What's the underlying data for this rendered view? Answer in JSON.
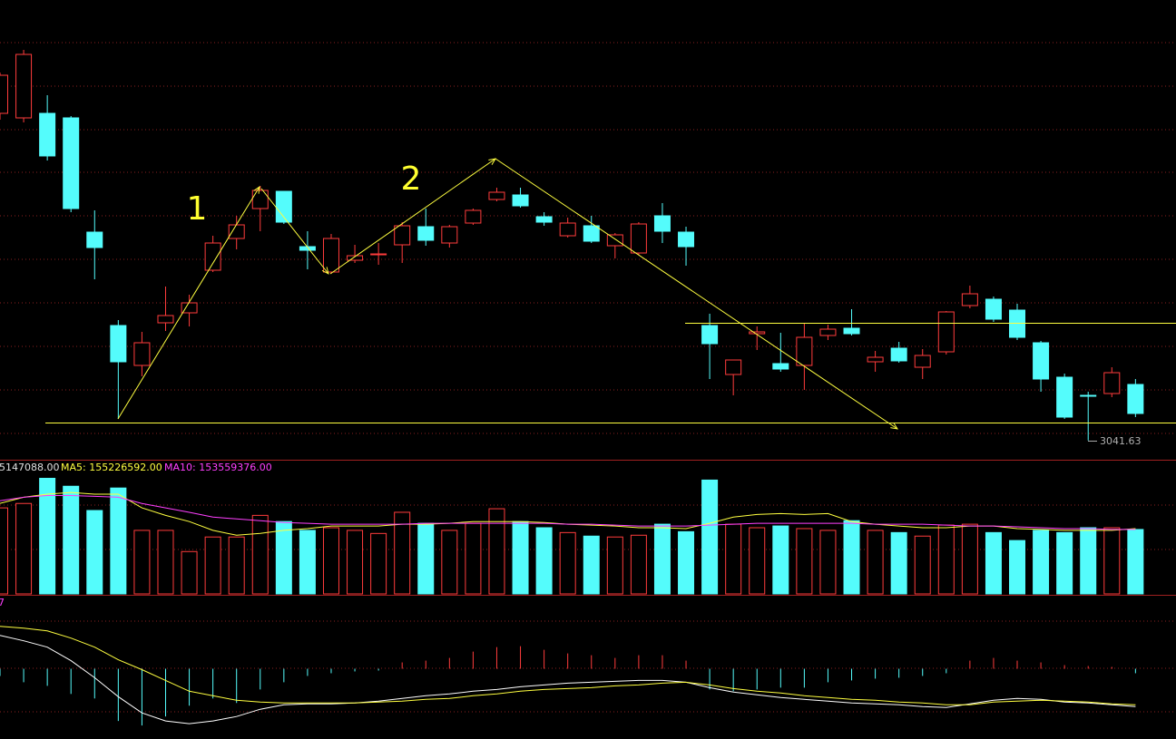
{
  "chart_data": [
    {
      "type": "candlestick",
      "up_color": "#ff3c3c",
      "down_color": "#54fcfc",
      "ylim": [
        3032,
        3284.5
      ],
      "annotations": [
        "1",
        "2"
      ],
      "open": [
        3222,
        3219.5,
        3222,
        3219.5,
        3156.5,
        3105,
        3083,
        3106.5,
        3112,
        3135.5,
        3153,
        3169.5,
        3179,
        3148.5,
        3134.5,
        3141,
        3144,
        3149.5,
        3159.5,
        3150.5,
        3161.5,
        3174.5,
        3177,
        3165,
        3154.5,
        3160,
        3149,
        3145,
        3165.5,
        3156.5,
        3105,
        3078,
        3100.5,
        3084,
        3083,
        3099.5,
        3103.5,
        3085,
        3092.5,
        3082,
        3090.5,
        3116,
        3119.5,
        3113.5,
        3095.5,
        3076.5,
        3066.5,
        3067.5,
        3072.5
      ],
      "high": [
        3244.5,
        3257,
        3232,
        3220.5,
        3168.5,
        3108,
        3101.5,
        3126.5,
        3122,
        3154.5,
        3165.5,
        3182,
        3179,
        3157,
        3155.5,
        3149.5,
        3150.5,
        3162,
        3169.5,
        3160.5,
        3169.5,
        3181,
        3181,
        3167.5,
        3164.5,
        3165.5,
        3156,
        3162,
        3172.5,
        3159.5,
        3111.5,
        3086,
        3104.5,
        3101,
        3106,
        3105.5,
        3114,
        3091,
        3096,
        3092,
        3113,
        3127,
        3121,
        3117,
        3096.5,
        3078.5,
        3068.5,
        3082,
        3075.5
      ],
      "low": [
        3218.5,
        3217,
        3196,
        3167.5,
        3130.5,
        3053.5,
        3077,
        3102,
        3104.5,
        3134.5,
        3147,
        3157,
        3161,
        3136,
        3133.5,
        3139.5,
        3138.5,
        3139.5,
        3149,
        3148,
        3160.5,
        3173.5,
        3170,
        3160,
        3153.5,
        3150.5,
        3142,
        3144,
        3150.5,
        3138,
        3075.5,
        3066.5,
        3091.5,
        3079.5,
        3069.5,
        3097,
        3099.5,
        3079.5,
        3084.5,
        3075.5,
        3089,
        3114.5,
        3107,
        3097,
        3068.5,
        3053.5,
        3041.63,
        3065.5,
        3054.5
      ],
      "close": [
        3243,
        3254.5,
        3198.5,
        3169.5,
        3148,
        3085,
        3095.5,
        3110.5,
        3117.5,
        3150.5,
        3160.5,
        3179.5,
        3162,
        3146.5,
        3153,
        3143.5,
        3144.5,
        3160,
        3152,
        3159.5,
        3168.5,
        3178.5,
        3171,
        3162,
        3161.5,
        3151.5,
        3155,
        3161,
        3157,
        3148.5,
        3095,
        3086,
        3101.5,
        3081,
        3098.5,
        3103,
        3100.5,
        3087.5,
        3085.5,
        3088.5,
        3112.5,
        3122.5,
        3108.5,
        3098.5,
        3075.5,
        3054.5,
        3066.5,
        3079,
        3056.5
      ]
    },
    {
      "type": "volume",
      "header": "5147088.00",
      "ylim": [
        0,
        300000000
      ],
      "values": [
        195000000,
        205000000,
        262000000,
        244000000,
        189000000,
        240000000,
        144000000,
        144000000,
        96000000,
        129000000,
        129000000,
        178000000,
        164000000,
        144000000,
        150000000,
        144000000,
        137000000,
        185000000,
        160000000,
        144000000,
        160000000,
        193000000,
        164000000,
        150000000,
        139000000,
        131000000,
        129000000,
        133000000,
        158000000,
        141000000,
        258000000,
        158000000,
        150000000,
        154000000,
        148000000,
        144000000,
        166000000,
        144000000,
        139000000,
        131000000,
        156000000,
        158000000,
        139000000,
        121000000,
        144000000,
        139000000,
        150000000,
        150000000,
        146000000
      ],
      "series": [
        {
          "name": "MA5: 155226592.00",
          "color": "#ffff40",
          "values": [
            205000000,
            219000000,
            226000000,
            230000000,
            226000000,
            226000000,
            195000000,
            178000000,
            164000000,
            144000000,
            133000000,
            137000000,
            144000000,
            148000000,
            154000000,
            154000000,
            154000000,
            158000000,
            158000000,
            160000000,
            164000000,
            164000000,
            164000000,
            162000000,
            158000000,
            156000000,
            154000000,
            150000000,
            150000000,
            148000000,
            160000000,
            174000000,
            180000000,
            182000000,
            180000000,
            182000000,
            164000000,
            158000000,
            154000000,
            150000000,
            150000000,
            154000000,
            154000000,
            148000000,
            146000000,
            144000000,
            144000000,
            144000000,
            148000000
          ]
        },
        {
          "name": "MA10: 153559376.00",
          "color": "#ff40ff",
          "values": [
            211000000,
            219000000,
            223000000,
            223000000,
            221000000,
            219000000,
            205000000,
            195000000,
            185000000,
            174000000,
            170000000,
            166000000,
            162000000,
            160000000,
            158000000,
            158000000,
            158000000,
            158000000,
            160000000,
            160000000,
            160000000,
            160000000,
            160000000,
            160000000,
            158000000,
            158000000,
            156000000,
            154000000,
            154000000,
            154000000,
            156000000,
            158000000,
            160000000,
            160000000,
            160000000,
            160000000,
            160000000,
            158000000,
            158000000,
            158000000,
            156000000,
            154000000,
            154000000,
            152000000,
            150000000,
            148000000,
            148000000,
            146000000,
            146000000
          ]
        }
      ]
    },
    {
      "type": "macd",
      "header": "7",
      "ylim": [
        -39,
        39
      ],
      "values": [
        -4,
        -7.5,
        -9.5,
        -14,
        -16.5,
        -29,
        -31.5,
        -26.5,
        -20.5,
        -16.5,
        -19,
        -11.5,
        -7.5,
        -4,
        -2.5,
        -1.5,
        -1,
        3.5,
        4.5,
        6,
        9.5,
        12,
        12.5,
        10.5,
        8.5,
        7.5,
        6,
        7.5,
        7.5,
        4.5,
        -11.5,
        -12.5,
        -11.5,
        -10.5,
        -10.5,
        -7.5,
        -6.5,
        -5.5,
        -5,
        -4,
        -2.5,
        4.5,
        6,
        4.5,
        3.5,
        2,
        1.5,
        1,
        -2.5
      ],
      "series": [
        {
          "color": "#ffffff",
          "values": [
            18.5,
            15.5,
            12,
            4.5,
            -5,
            -15.5,
            -24.5,
            -29,
            -30.5,
            -29,
            -26.5,
            -22.5,
            -20,
            -19.5,
            -19.5,
            -19,
            -18,
            -16.5,
            -15,
            -14,
            -12.5,
            -11.5,
            -10,
            -9,
            -8,
            -7.5,
            -7,
            -6.5,
            -6.5,
            -7.5,
            -10.5,
            -13,
            -14.5,
            -16,
            -17,
            -18,
            -19,
            -19.5,
            -20,
            -21,
            -21.5,
            -19.5,
            -17.5,
            -16.5,
            -17,
            -18.5,
            -19,
            -20,
            -21
          ]
        },
        {
          "color": "#ffff40",
          "values": [
            23.5,
            22.5,
            21,
            17,
            12,
            5,
            -0.5,
            -6.5,
            -12.5,
            -15,
            -17.5,
            -18.5,
            -19,
            -19,
            -19,
            -19,
            -18.5,
            -18,
            -17,
            -16.5,
            -15,
            -14,
            -12.5,
            -11.5,
            -11,
            -10.5,
            -9.5,
            -9,
            -8,
            -7.5,
            -9,
            -11,
            -12.5,
            -13.5,
            -15,
            -16,
            -17,
            -17.5,
            -18.5,
            -19,
            -20,
            -20,
            -18.5,
            -18,
            -17.5,
            -18,
            -18.5,
            -19.5,
            -20
          ]
        }
      ]
    }
  ]
}
